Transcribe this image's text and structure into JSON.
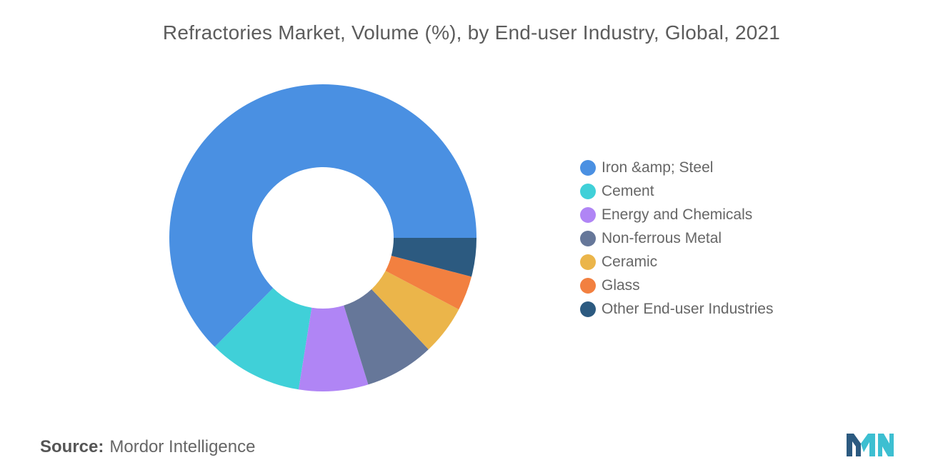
{
  "chart_data": {
    "type": "pie",
    "variant": "donut",
    "title": "Refractories Market, Volume (%), by End-user Industry, Global, 2021",
    "categories": [
      "Iron &amp; Steel",
      "Cement",
      "Energy and Chemicals",
      "Non-ferrous Metal",
      "Ceramic",
      "Glass",
      "Other End-user Industries"
    ],
    "values": [
      60.0,
      9.5,
      7.0,
      7.0,
      5.0,
      3.5,
      3.9
    ],
    "colors": [
      "#4a90e2",
      "#40d0d8",
      "#b085f5",
      "#667799",
      "#ebb54a",
      "#f28040",
      "#2c5a80"
    ],
    "unit": "%",
    "legend_position": "right"
  },
  "source": {
    "label": "Source:",
    "text": "Mordor Intelligence"
  },
  "logo": {
    "colors": [
      "#2c5a80",
      "#3dbfd1"
    ]
  }
}
